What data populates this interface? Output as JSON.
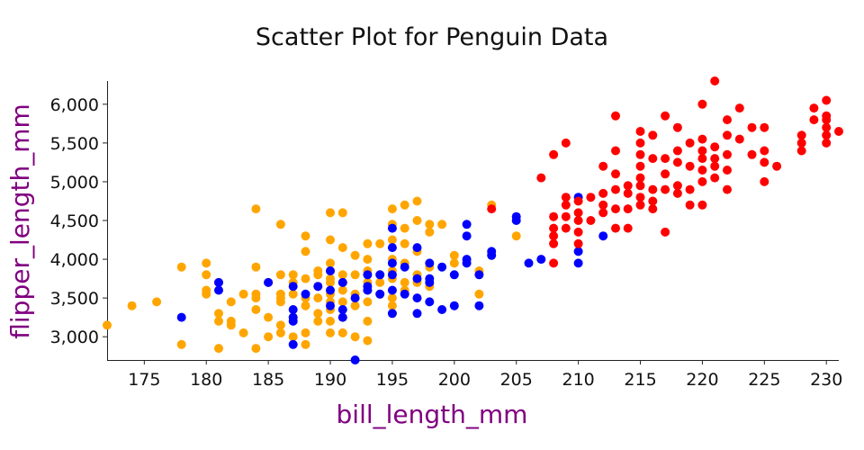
{
  "chart_data": {
    "type": "scatter",
    "title": "Scatter Plot for Penguin Data",
    "xlabel": "bill_length_mm",
    "ylabel": "flipper_length_mm",
    "xlim": [
      172,
      231
    ],
    "ylim": [
      2700,
      6300
    ],
    "x_ticks": [
      175,
      180,
      185,
      190,
      195,
      200,
      205,
      210,
      215,
      220,
      225,
      230
    ],
    "x_tick_labels": [
      "175",
      "180",
      "185",
      "190",
      "195",
      "200",
      "205",
      "210",
      "215",
      "220",
      "225",
      "230"
    ],
    "y_ticks": [
      3000,
      3500,
      4000,
      4500,
      5000,
      5500,
      6000
    ],
    "y_tick_labels": [
      "3,000",
      "3,500",
      "4,000",
      "4,500",
      "5,000",
      "5,500",
      "6,000"
    ],
    "grid": false,
    "legend": "none",
    "label_color": "#800080",
    "series": [
      {
        "color": "#FFA500",
        "points": [
          [
            172,
            3150
          ],
          [
            174,
            3400
          ],
          [
            176,
            3450
          ],
          [
            178,
            3900
          ],
          [
            178,
            2900
          ],
          [
            180,
            3950
          ],
          [
            180,
            3800
          ],
          [
            180,
            3600
          ],
          [
            180,
            3550
          ],
          [
            181,
            3700
          ],
          [
            181,
            3300
          ],
          [
            181,
            3200
          ],
          [
            181,
            2850
          ],
          [
            182,
            3450
          ],
          [
            182,
            3200
          ],
          [
            182,
            3150
          ],
          [
            183,
            3550
          ],
          [
            183,
            3050
          ],
          [
            184,
            4650
          ],
          [
            184,
            3900
          ],
          [
            184,
            3550
          ],
          [
            184,
            3500
          ],
          [
            184,
            3350
          ],
          [
            184,
            2850
          ],
          [
            185,
            3700
          ],
          [
            185,
            3250
          ],
          [
            185,
            3000
          ],
          [
            186,
            4450
          ],
          [
            186,
            3800
          ],
          [
            186,
            3550
          ],
          [
            186,
            3500
          ],
          [
            186,
            3450
          ],
          [
            186,
            3150
          ],
          [
            186,
            3050
          ],
          [
            187,
            3800
          ],
          [
            187,
            3700
          ],
          [
            187,
            3550
          ],
          [
            187,
            3250
          ],
          [
            187,
            3000
          ],
          [
            188,
            4300
          ],
          [
            188,
            4100
          ],
          [
            188,
            3750
          ],
          [
            188,
            3500
          ],
          [
            188,
            3400
          ],
          [
            188,
            3050
          ],
          [
            188,
            2900
          ],
          [
            189,
            3850
          ],
          [
            189,
            3800
          ],
          [
            189,
            3650
          ],
          [
            189,
            3500
          ],
          [
            189,
            3300
          ],
          [
            189,
            3200
          ],
          [
            190,
            4600
          ],
          [
            190,
            4250
          ],
          [
            190,
            3950
          ],
          [
            190,
            3850
          ],
          [
            190,
            3750
          ],
          [
            190,
            3700
          ],
          [
            190,
            3550
          ],
          [
            190,
            3450
          ],
          [
            190,
            3350
          ],
          [
            190,
            3200
          ],
          [
            190,
            3050
          ],
          [
            191,
            4600
          ],
          [
            191,
            4150
          ],
          [
            191,
            3800
          ],
          [
            191,
            3700
          ],
          [
            191,
            3600
          ],
          [
            191,
            3450
          ],
          [
            191,
            3250
          ],
          [
            191,
            3050
          ],
          [
            192,
            4050
          ],
          [
            192,
            3800
          ],
          [
            192,
            3550
          ],
          [
            192,
            3400
          ],
          [
            192,
            3000
          ],
          [
            193,
            4200
          ],
          [
            193,
            4000
          ],
          [
            193,
            3850
          ],
          [
            193,
            3700
          ],
          [
            193,
            3600
          ],
          [
            193,
            3450
          ],
          [
            193,
            3200
          ],
          [
            193,
            2950
          ],
          [
            194,
            4200
          ],
          [
            194,
            3800
          ],
          [
            194,
            3700
          ],
          [
            194,
            3550
          ],
          [
            195,
            4650
          ],
          [
            195,
            4450
          ],
          [
            195,
            4250
          ],
          [
            195,
            4000
          ],
          [
            195,
            3850
          ],
          [
            195,
            3750
          ],
          [
            195,
            3500
          ],
          [
            195,
            3400
          ],
          [
            195,
            3300
          ],
          [
            196,
            4700
          ],
          [
            196,
            4400
          ],
          [
            196,
            4200
          ],
          [
            196,
            3950
          ],
          [
            196,
            3700
          ],
          [
            196,
            3600
          ],
          [
            197,
            4750
          ],
          [
            197,
            4500
          ],
          [
            197,
            4100
          ],
          [
            197,
            3800
          ],
          [
            197,
            3700
          ],
          [
            198,
            4450
          ],
          [
            198,
            4350
          ],
          [
            198,
            3900
          ],
          [
            198,
            3650
          ],
          [
            199,
            4450
          ],
          [
            200,
            4050
          ],
          [
            200,
            3950
          ],
          [
            202,
            3850
          ],
          [
            202,
            3550
          ],
          [
            203,
            4700
          ],
          [
            205,
            4300
          ]
        ]
      },
      {
        "color": "#0000FF",
        "points": [
          [
            178,
            3250
          ],
          [
            181,
            3700
          ],
          [
            181,
            3600
          ],
          [
            185,
            3700
          ],
          [
            187,
            3650
          ],
          [
            187,
            3350
          ],
          [
            187,
            3250
          ],
          [
            187,
            3200
          ],
          [
            187,
            2900
          ],
          [
            188,
            3550
          ],
          [
            189,
            3650
          ],
          [
            190,
            3850
          ],
          [
            190,
            3600
          ],
          [
            190,
            3400
          ],
          [
            191,
            3700
          ],
          [
            191,
            3350
          ],
          [
            191,
            3250
          ],
          [
            192,
            3500
          ],
          [
            192,
            2700
          ],
          [
            193,
            3800
          ],
          [
            193,
            3650
          ],
          [
            193,
            3600
          ],
          [
            194,
            3800
          ],
          [
            194,
            3550
          ],
          [
            195,
            4400
          ],
          [
            195,
            4150
          ],
          [
            195,
            3950
          ],
          [
            195,
            3800
          ],
          [
            195,
            3600
          ],
          [
            195,
            3300
          ],
          [
            196,
            3900
          ],
          [
            196,
            3550
          ],
          [
            197,
            4150
          ],
          [
            197,
            3750
          ],
          [
            197,
            3500
          ],
          [
            197,
            3300
          ],
          [
            198,
            3950
          ],
          [
            198,
            3750
          ],
          [
            198,
            3700
          ],
          [
            198,
            3450
          ],
          [
            199,
            3900
          ],
          [
            199,
            3350
          ],
          [
            200,
            3800
          ],
          [
            200,
            3400
          ],
          [
            201,
            4450
          ],
          [
            201,
            4300
          ],
          [
            201,
            4000
          ],
          [
            201,
            3950
          ],
          [
            202,
            3800
          ],
          [
            202,
            3400
          ],
          [
            203,
            4100
          ],
          [
            203,
            4050
          ],
          [
            205,
            4550
          ],
          [
            205,
            4500
          ],
          [
            206,
            3950
          ],
          [
            207,
            4000
          ],
          [
            210,
            4800
          ],
          [
            210,
            4100
          ],
          [
            210,
            3950
          ],
          [
            212,
            4300
          ]
        ]
      },
      {
        "color": "#FF0000",
        "points": [
          [
            203,
            4650
          ],
          [
            207,
            5050
          ],
          [
            208,
            5350
          ],
          [
            208,
            4550
          ],
          [
            208,
            4400
          ],
          [
            208,
            4300
          ],
          [
            208,
            4200
          ],
          [
            208,
            3950
          ],
          [
            209,
            5500
          ],
          [
            209,
            4800
          ],
          [
            209,
            4700
          ],
          [
            209,
            4550
          ],
          [
            209,
            4400
          ],
          [
            210,
            4750
          ],
          [
            210,
            4600
          ],
          [
            210,
            4500
          ],
          [
            210,
            4350
          ],
          [
            210,
            4200
          ],
          [
            211,
            4800
          ],
          [
            211,
            4500
          ],
          [
            212,
            5200
          ],
          [
            212,
            4850
          ],
          [
            212,
            4700
          ],
          [
            212,
            4600
          ],
          [
            213,
            5850
          ],
          [
            213,
            5400
          ],
          [
            213,
            5100
          ],
          [
            213,
            4900
          ],
          [
            213,
            4650
          ],
          [
            213,
            4400
          ],
          [
            214,
            4950
          ],
          [
            214,
            4850
          ],
          [
            214,
            4650
          ],
          [
            214,
            4400
          ],
          [
            215,
            5650
          ],
          [
            215,
            5500
          ],
          [
            215,
            5350
          ],
          [
            215,
            5200
          ],
          [
            215,
            5050
          ],
          [
            215,
            4950
          ],
          [
            215,
            4800
          ],
          [
            215,
            4700
          ],
          [
            216,
            5600
          ],
          [
            216,
            5300
          ],
          [
            216,
            4900
          ],
          [
            216,
            4750
          ],
          [
            216,
            4650
          ],
          [
            217,
            5850
          ],
          [
            217,
            5300
          ],
          [
            217,
            5100
          ],
          [
            217,
            4900
          ],
          [
            217,
            4350
          ],
          [
            218,
            5700
          ],
          [
            218,
            5400
          ],
          [
            218,
            5250
          ],
          [
            218,
            4950
          ],
          [
            218,
            4850
          ],
          [
            219,
            5500
          ],
          [
            219,
            5200
          ],
          [
            219,
            4900
          ],
          [
            219,
            4700
          ],
          [
            220,
            6000
          ],
          [
            220,
            5550
          ],
          [
            220,
            5400
          ],
          [
            220,
            5300
          ],
          [
            220,
            5150
          ],
          [
            220,
            5000
          ],
          [
            220,
            4700
          ],
          [
            221,
            6300
          ],
          [
            221,
            5450
          ],
          [
            221,
            5300
          ],
          [
            221,
            5200
          ],
          [
            221,
            5050
          ],
          [
            222,
            5800
          ],
          [
            222,
            5600
          ],
          [
            222,
            5350
          ],
          [
            222,
            5150
          ],
          [
            222,
            4900
          ],
          [
            223,
            5950
          ],
          [
            223,
            5550
          ],
          [
            224,
            5700
          ],
          [
            224,
            5350
          ],
          [
            225,
            5700
          ],
          [
            225,
            5400
          ],
          [
            225,
            5250
          ],
          [
            225,
            5000
          ],
          [
            226,
            5200
          ],
          [
            228,
            5600
          ],
          [
            228,
            5500
          ],
          [
            228,
            5400
          ],
          [
            229,
            5950
          ],
          [
            229,
            5800
          ],
          [
            230,
            6050
          ],
          [
            230,
            5850
          ],
          [
            230,
            5800
          ],
          [
            230,
            5700
          ],
          [
            230,
            5600
          ],
          [
            230,
            5500
          ],
          [
            231,
            5650
          ]
        ]
      }
    ]
  }
}
